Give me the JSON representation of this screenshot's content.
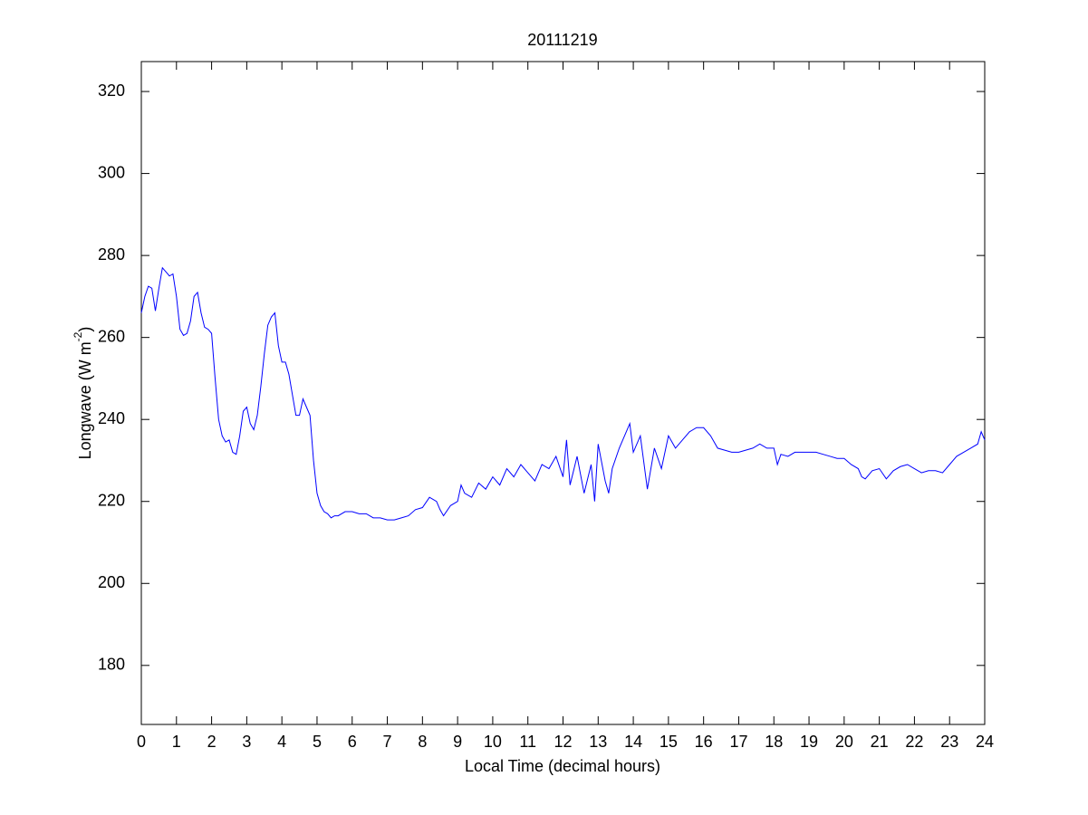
{
  "chart_data": {
    "type": "line",
    "title": "20111219",
    "xlabel": "Local Time (decimal hours)",
    "ylabel": [
      "Longwave (W m",
      "-2",
      ")"
    ],
    "color": "#0000ff",
    "xlim": [
      0,
      24
    ],
    "xticks": [
      0,
      1,
      2,
      3,
      4,
      5,
      6,
      7,
      8,
      9,
      10,
      11,
      12,
      13,
      14,
      15,
      16,
      17,
      18,
      19,
      20,
      21,
      22,
      23,
      24
    ],
    "ylim": [
      165.6,
      327.3
    ],
    "yticks": [
      180,
      200,
      220,
      240,
      260,
      280,
      300,
      320
    ],
    "x": [
      0,
      0.1,
      0.2,
      0.3,
      0.4,
      0.5,
      0.6,
      0.7,
      0.8,
      0.9,
      1.0,
      1.1,
      1.2,
      1.3,
      1.4,
      1.5,
      1.6,
      1.7,
      1.8,
      1.9,
      2.0,
      2.1,
      2.2,
      2.3,
      2.4,
      2.5,
      2.6,
      2.7,
      2.8,
      2.9,
      3.0,
      3.1,
      3.2,
      3.3,
      3.4,
      3.5,
      3.6,
      3.7,
      3.8,
      3.9,
      4.0,
      4.1,
      4.2,
      4.3,
      4.4,
      4.5,
      4.6,
      4.7,
      4.8,
      4.9,
      5.0,
      5.1,
      5.2,
      5.3,
      5.4,
      5.5,
      5.6,
      5.8,
      6.0,
      6.2,
      6.4,
      6.6,
      6.8,
      7.0,
      7.2,
      7.4,
      7.6,
      7.8,
      8.0,
      8.2,
      8.4,
      8.5,
      8.6,
      8.8,
      9.0,
      9.1,
      9.2,
      9.4,
      9.6,
      9.8,
      10.0,
      10.2,
      10.4,
      10.6,
      10.8,
      11.0,
      11.2,
      11.4,
      11.6,
      11.8,
      12.0,
      12.1,
      12.2,
      12.4,
      12.6,
      12.8,
      12.9,
      13.0,
      13.2,
      13.3,
      13.4,
      13.6,
      13.8,
      13.9,
      14.0,
      14.2,
      14.4,
      14.6,
      14.8,
      15.0,
      15.2,
      15.4,
      15.6,
      15.8,
      16.0,
      16.2,
      16.4,
      16.6,
      16.8,
      17.0,
      17.2,
      17.4,
      17.6,
      17.8,
      18.0,
      18.1,
      18.2,
      18.4,
      18.6,
      18.8,
      19.0,
      19.2,
      19.4,
      19.6,
      19.8,
      20.0,
      20.2,
      20.4,
      20.5,
      20.6,
      20.8,
      21.0,
      21.2,
      21.4,
      21.6,
      21.8,
      22.0,
      22.2,
      22.4,
      22.6,
      22.8,
      23.0,
      23.2,
      23.4,
      23.6,
      23.8,
      23.9,
      24.0
    ],
    "values": [
      266,
      270,
      272.5,
      272,
      266.5,
      272,
      277,
      276,
      275,
      275.5,
      270,
      262,
      260.5,
      261,
      264,
      270,
      271,
      266,
      262.5,
      262,
      261,
      250,
      240,
      236,
      234.5,
      235,
      232,
      231.5,
      236,
      242,
      243,
      239,
      237.5,
      241,
      248,
      256,
      263,
      265,
      266,
      258,
      254,
      254,
      251,
      246,
      241,
      241,
      245,
      243,
      241,
      230,
      222,
      219,
      217.5,
      217,
      216,
      216.5,
      216.5,
      217.5,
      217.5,
      217,
      217,
      216,
      216,
      215.5,
      215.5,
      216,
      216.5,
      218,
      218.5,
      221,
      220,
      218,
      216.5,
      219,
      220,
      224,
      222,
      221,
      224.5,
      223,
      226,
      224,
      228,
      226,
      229,
      227,
      225,
      229,
      228,
      231,
      226,
      235,
      224,
      231,
      222,
      229,
      220,
      234,
      225,
      222,
      228,
      233,
      237,
      239,
      232,
      236,
      223,
      233,
      228,
      236,
      233,
      235,
      237,
      238,
      238,
      236,
      233,
      232.5,
      232,
      232,
      232.5,
      233,
      234,
      233,
      233,
      229,
      231.5,
      231,
      232,
      232,
      232,
      232,
      231.5,
      231,
      230.5,
      230.5,
      229,
      228,
      226,
      225.5,
      227.5,
      228,
      225.5,
      227.5,
      228.5,
      229,
      228,
      227,
      227.5,
      227.5,
      227,
      229,
      231,
      232,
      233,
      234,
      237,
      235
    ]
  }
}
